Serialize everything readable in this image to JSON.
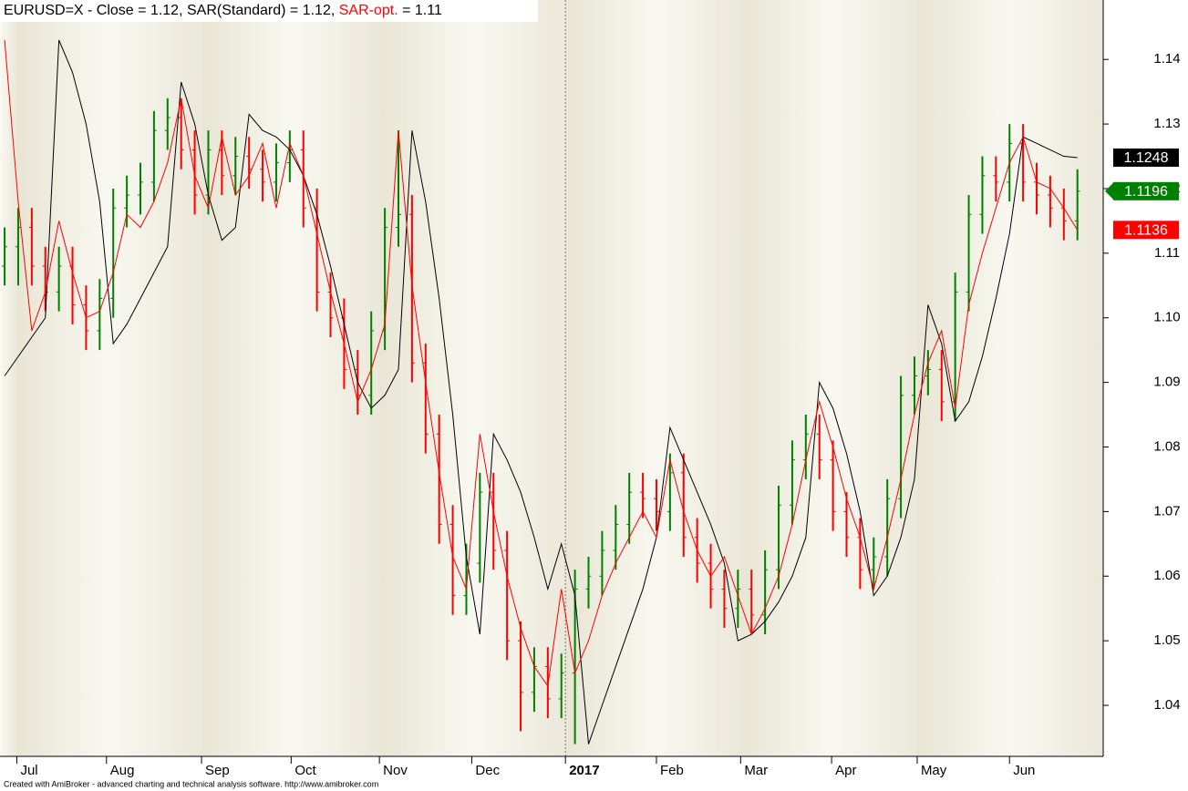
{
  "chart_data": {
    "type": "ohlc",
    "title_parts": [
      "EURUSD=X - Close = 1.12, SAR(Standard) = 1.12, ",
      "SAR-opt.",
      " = 1.11"
    ],
    "footer": "Created with AmiBroker - advanced charting and technical analysis software. http://www.amibroker.com",
    "up_color": "#008000",
    "down_color": "#ff0000",
    "open": [
      1.108,
      1.111,
      1.114,
      1.108,
      1.104,
      1.108,
      1.102,
      1.098,
      1.103,
      1.117,
      1.119,
      1.121,
      1.129,
      1.131,
      1.126,
      1.119,
      1.126,
      1.122,
      1.125,
      1.123,
      1.121,
      1.124,
      1.126,
      1.117,
      1.104,
      1.1,
      1.092,
      1.088,
      1.098,
      1.114,
      1.116,
      1.093,
      1.082,
      1.068,
      1.057,
      1.062,
      1.073,
      1.064,
      1.05,
      1.042,
      1.046,
      1.041,
      1.045,
      1.058,
      1.06,
      1.064,
      1.068,
      1.073,
      1.072,
      1.07,
      1.076,
      1.066,
      1.062,
      1.058,
      1.055,
      1.058,
      1.054,
      1.061,
      1.071,
      1.078,
      1.082,
      1.078,
      1.07,
      1.066,
      1.061,
      1.063,
      1.072,
      1.088,
      1.091,
      1.092,
      1.087,
      1.104,
      1.116,
      1.122,
      1.121,
      1.127,
      1.121,
      1.119,
      1.117,
      1.115
    ],
    "high": [
      1.114,
      1.117,
      1.117,
      1.111,
      1.111,
      1.111,
      1.105,
      1.106,
      1.12,
      1.122,
      1.124,
      1.132,
      1.134,
      1.134,
      1.129,
      1.129,
      1.129,
      1.128,
      1.128,
      1.126,
      1.127,
      1.129,
      1.129,
      1.12,
      1.107,
      1.103,
      1.095,
      1.101,
      1.117,
      1.129,
      1.119,
      1.096,
      1.085,
      1.071,
      1.065,
      1.076,
      1.076,
      1.067,
      1.053,
      1.049,
      1.049,
      1.048,
      1.061,
      1.063,
      1.067,
      1.071,
      1.076,
      1.076,
      1.075,
      1.079,
      1.079,
      1.069,
      1.065,
      1.061,
      1.061,
      1.061,
      1.064,
      1.074,
      1.081,
      1.085,
      1.085,
      1.081,
      1.073,
      1.069,
      1.066,
      1.075,
      1.091,
      1.094,
      1.095,
      1.095,
      1.107,
      1.119,
      1.125,
      1.125,
      1.13,
      1.13,
      1.124,
      1.122,
      1.12,
      1.123
    ],
    "low": [
      1.105,
      1.105,
      1.105,
      1.101,
      1.101,
      1.099,
      1.095,
      1.095,
      1.1,
      1.114,
      1.116,
      1.118,
      1.126,
      1.123,
      1.116,
      1.116,
      1.119,
      1.119,
      1.12,
      1.118,
      1.118,
      1.121,
      1.114,
      1.101,
      1.097,
      1.089,
      1.085,
      1.085,
      1.095,
      1.111,
      1.09,
      1.079,
      1.065,
      1.054,
      1.054,
      1.059,
      1.061,
      1.047,
      1.036,
      1.039,
      1.038,
      1.038,
      1.034,
      1.055,
      1.057,
      1.061,
      1.065,
      1.069,
      1.067,
      1.067,
      1.063,
      1.059,
      1.055,
      1.052,
      1.052,
      1.051,
      1.051,
      1.058,
      1.068,
      1.075,
      1.075,
      1.067,
      1.063,
      1.058,
      1.058,
      1.06,
      1.069,
      1.085,
      1.088,
      1.084,
      1.084,
      1.101,
      1.113,
      1.118,
      1.118,
      1.118,
      1.116,
      1.114,
      1.112,
      1.112
    ],
    "close": [
      1.111,
      1.114,
      1.108,
      1.104,
      1.108,
      1.102,
      1.098,
      1.103,
      1.117,
      1.119,
      1.121,
      1.129,
      1.131,
      1.126,
      1.119,
      1.126,
      1.122,
      1.125,
      1.123,
      1.121,
      1.124,
      1.126,
      1.117,
      1.104,
      1.1,
      1.092,
      1.088,
      1.098,
      1.114,
      1.116,
      1.093,
      1.082,
      1.068,
      1.057,
      1.062,
      1.073,
      1.064,
      1.05,
      1.042,
      1.046,
      1.041,
      1.045,
      1.058,
      1.06,
      1.064,
      1.068,
      1.073,
      1.072,
      1.07,
      1.076,
      1.066,
      1.062,
      1.058,
      1.055,
      1.058,
      1.054,
      1.061,
      1.071,
      1.078,
      1.082,
      1.078,
      1.07,
      1.066,
      1.061,
      1.063,
      1.072,
      1.088,
      1.091,
      1.092,
      1.087,
      1.104,
      1.116,
      1.122,
      1.121,
      1.127,
      1.121,
      1.119,
      1.117,
      1.115,
      1.1196
    ],
    "series": [
      {
        "name": "SAR(Standard)",
        "color": "#000000",
        "values": [
          1.091,
          1.094,
          1.097,
          1.1,
          1.143,
          1.138,
          1.13,
          1.118,
          1.096,
          1.099,
          1.103,
          1.107,
          1.111,
          1.1365,
          1.13,
          1.119,
          1.112,
          1.114,
          1.1315,
          1.129,
          1.128,
          1.126,
          1.122,
          1.116,
          1.108,
          1.099,
          1.09,
          1.086,
          1.088,
          1.092,
          1.129,
          1.118,
          1.103,
          1.085,
          1.063,
          1.051,
          1.082,
          1.078,
          1.073,
          1.066,
          1.058,
          1.065,
          1.057,
          1.034,
          1.04,
          1.046,
          1.052,
          1.058,
          1.066,
          1.083,
          1.078,
          1.073,
          1.068,
          1.062,
          1.05,
          1.051,
          1.053,
          1.056,
          1.06,
          1.066,
          1.09,
          1.086,
          1.079,
          1.07,
          1.057,
          1.06,
          1.066,
          1.075,
          1.102,
          1.096,
          1.084,
          1.087,
          1.094,
          1.103,
          1.113,
          1.128,
          1.127,
          1.126,
          1.125,
          1.1248
        ]
      },
      {
        "name": "SAR-opt.",
        "color": "#ff0000",
        "values": [
          1.143,
          1.118,
          1.098,
          1.104,
          1.115,
          1.107,
          1.1,
          1.101,
          1.107,
          1.116,
          1.114,
          1.118,
          1.124,
          1.134,
          1.122,
          1.117,
          1.128,
          1.119,
          1.122,
          1.127,
          1.117,
          1.127,
          1.122,
          1.113,
          1.104,
          1.096,
          1.087,
          1.092,
          1.099,
          1.129,
          1.105,
          1.09,
          1.076,
          1.063,
          1.058,
          1.082,
          1.07,
          1.06,
          1.052,
          1.046,
          1.043,
          1.058,
          1.045,
          1.05,
          1.057,
          1.062,
          1.066,
          1.07,
          1.066,
          1.078,
          1.07,
          1.064,
          1.06,
          1.063,
          1.057,
          1.051,
          1.055,
          1.06,
          1.068,
          1.078,
          1.087,
          1.08,
          1.072,
          1.066,
          1.058,
          1.066,
          1.075,
          1.085,
          1.093,
          1.098,
          1.086,
          1.102,
          1.11,
          1.117,
          1.124,
          1.128,
          1.121,
          1.12,
          1.117,
          1.1136
        ]
      }
    ],
    "ylim": [
      1.0321,
      1.1492
    ],
    "yticks": [
      1.04,
      1.05,
      1.06,
      1.07,
      1.08,
      1.09,
      {
        "value": 1.1,
        "label": "1.10"
      },
      1.11,
      1.12,
      1.13,
      1.14
    ],
    "xlim": [
      -0.34,
      80.9
    ],
    "xticks": [
      {
        "value": 0.9,
        "label": "Jul"
      },
      {
        "value": 7.5,
        "label": "Aug"
      },
      {
        "value": 14.5,
        "label": "Sep"
      },
      {
        "value": 21.1,
        "label": "Oct"
      },
      {
        "value": 27.6,
        "label": "Nov"
      },
      {
        "value": 34.4,
        "label": "Dec"
      },
      {
        "value": 41.3,
        "label": "2017"
      },
      {
        "value": 48.0,
        "label": "Feb"
      },
      {
        "value": 54.2,
        "label": "Mar"
      },
      {
        "value": 60.9,
        "label": "Apr"
      },
      {
        "value": 67.2,
        "label": "May"
      },
      {
        "value": 74.0,
        "label": "Jun"
      }
    ],
    "bold_xticks": [
      6
    ]
  }
}
